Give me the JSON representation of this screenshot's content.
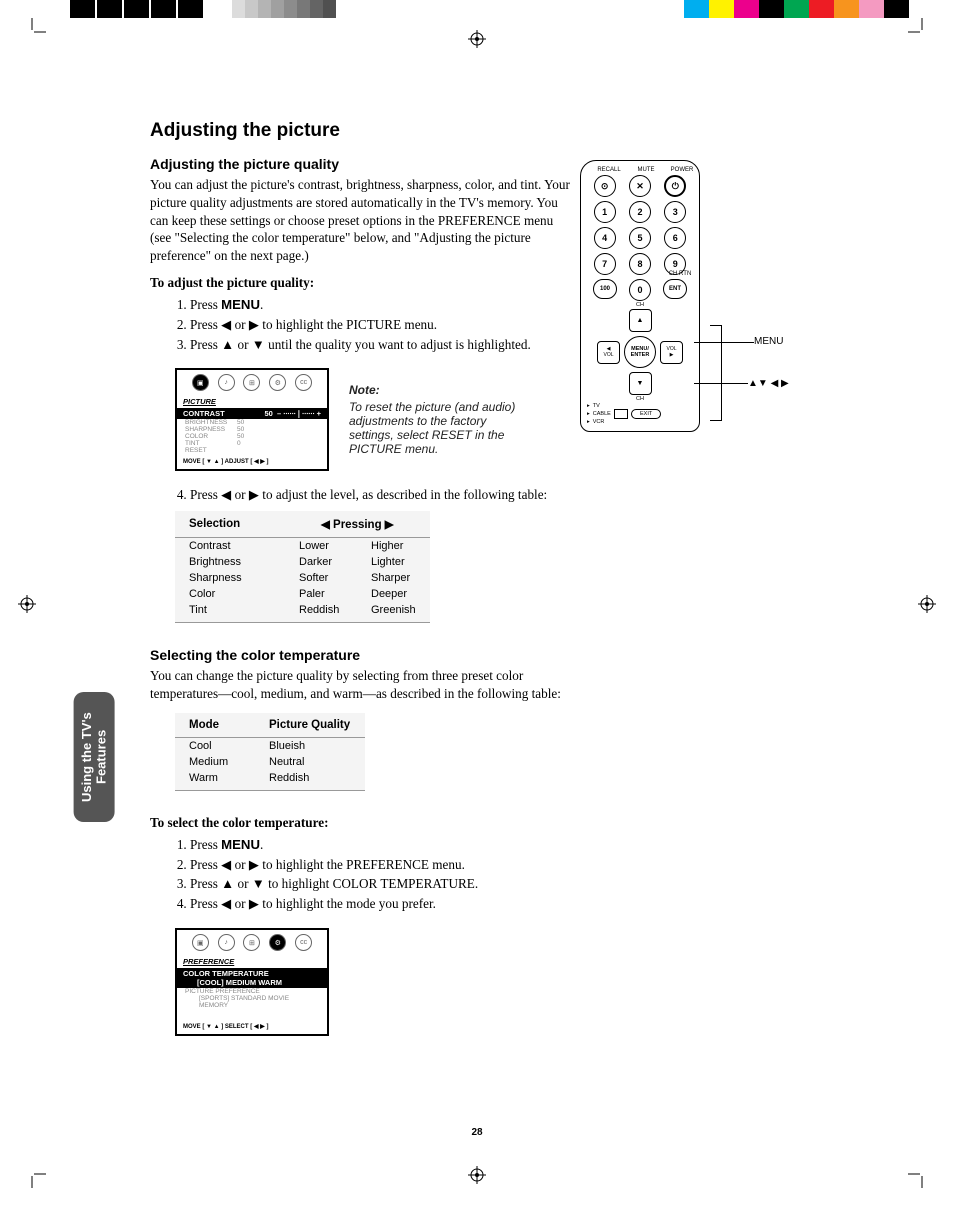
{
  "crop": {
    "black_box_color": "#000000",
    "gray_shades": [
      "#dcdcdc",
      "#c8c8c8",
      "#b4b4b4",
      "#a0a0a0",
      "#8c8c8c",
      "#787878",
      "#646464",
      "#505050"
    ],
    "color_bars": [
      "#00aeef",
      "#fff200",
      "#ec008c",
      "#000000",
      "#00a651",
      "#ed1c24",
      "#f7941e",
      "#f49ac1",
      "#000000"
    ]
  },
  "page_number": "28",
  "side_tab": "Using the TV's\nFeatures",
  "h1": "Adjusting the picture",
  "sec1": {
    "title": "Adjusting the picture quality",
    "body": "You can adjust the picture's contrast, brightness, sharpness, color, and tint. Your picture quality adjustments are stored automatically in the TV's memory. You can keep these settings or choose preset options in the PREFERENCE menu (see \"Selecting the color temperature\" below, and \"Adjusting the picture preference\" on the next page.)",
    "lead": "To adjust the picture quality:",
    "steps": [
      {
        "pre": "Press ",
        "menu": "MENU",
        "post": "."
      },
      {
        "pre": "Press ◀ or ▶ to highlight the PICTURE menu."
      },
      {
        "pre": "Press ▲ or ▼ until the quality you want to adjust is highlighted."
      },
      {
        "pre": "Press ◀ or ▶ to adjust the level, as described in the following table:"
      }
    ],
    "osd": {
      "section": "PICTURE",
      "hl_label": "CONTRAST",
      "hl_value": "50",
      "rows": [
        {
          "label": "BRIGHTNESS",
          "value": "50"
        },
        {
          "label": "SHARPNESS",
          "value": "50"
        },
        {
          "label": "COLOR",
          "value": "50"
        },
        {
          "label": "TINT",
          "value": "0"
        },
        {
          "label": "RESET",
          "value": ""
        }
      ],
      "footer": "MOVE [ ▼ ▲ ]    ADJUST [ ◀  ▶ ]"
    },
    "note_title": "Note:",
    "note_body": "To reset the picture (and audio) adjustments to the factory settings, select RESET in the PICTURE menu.",
    "table": {
      "headers": [
        "Selection",
        "◀   Pressing   ▶"
      ],
      "rows": [
        [
          "Contrast",
          "Lower",
          "Higher"
        ],
        [
          "Brightness",
          "Darker",
          "Lighter"
        ],
        [
          "Sharpness",
          "Softer",
          "Sharper"
        ],
        [
          "Color",
          "Paler",
          "Deeper"
        ],
        [
          "Tint",
          "Reddish",
          "Greenish"
        ]
      ]
    }
  },
  "sec2": {
    "title": "Selecting the color temperature",
    "body": "You can change the picture quality by selecting from three preset color temperatures—cool, medium, and warm—as described in the following table:",
    "table": {
      "headers": [
        "Mode",
        "Picture Quality"
      ],
      "rows": [
        [
          "Cool",
          "Blueish"
        ],
        [
          "Medium",
          "Neutral"
        ],
        [
          "Warm",
          "Reddish"
        ]
      ]
    },
    "lead": "To select the color temperature:",
    "steps": [
      {
        "pre": "Press ",
        "menu": "MENU",
        "post": "."
      },
      {
        "pre": "Press ◀ or ▶ to highlight the PREFERENCE menu."
      },
      {
        "pre": "Press ▲ or ▼ to highlight COLOR TEMPERATURE."
      },
      {
        "pre": "Press ◀ or ▶ to highlight the mode you prefer."
      }
    ],
    "osd": {
      "section": "PREFERENCE",
      "hl_line1": "COLOR TEMPERATURE",
      "hl_line2": "[COOL]  MEDIUM  WARM",
      "row1": "PICTURE PREFERENCE",
      "row2": "[SPORTS]  STANDARD  MOVIE  MEMORY",
      "footer": "MOVE [ ▼ ▲ ]    SELECT [ ◀  ▶ ]"
    }
  },
  "remote": {
    "top_labels": [
      "RECALL",
      "MUTE",
      "POWER"
    ],
    "row1_icons": [
      "⊙",
      "✕",
      "⏻"
    ],
    "numpad": [
      [
        "1",
        "2",
        "3"
      ],
      [
        "4",
        "5",
        "6"
      ],
      [
        "7",
        "8",
        "9"
      ],
      [
        "100",
        "0",
        "ENT"
      ]
    ],
    "ch_rtn": "CH RTN",
    "dpad_center1": "MENU/",
    "dpad_center2": "ENTER",
    "dpad_vol": "VOL",
    "dpad_ch": "CH",
    "switch_labels": [
      "TV",
      "CABLE",
      "VCR"
    ],
    "exit": "EXIT",
    "callout_menu": "MENU",
    "callout_arrows": "▲▼ ◀ ▶"
  }
}
